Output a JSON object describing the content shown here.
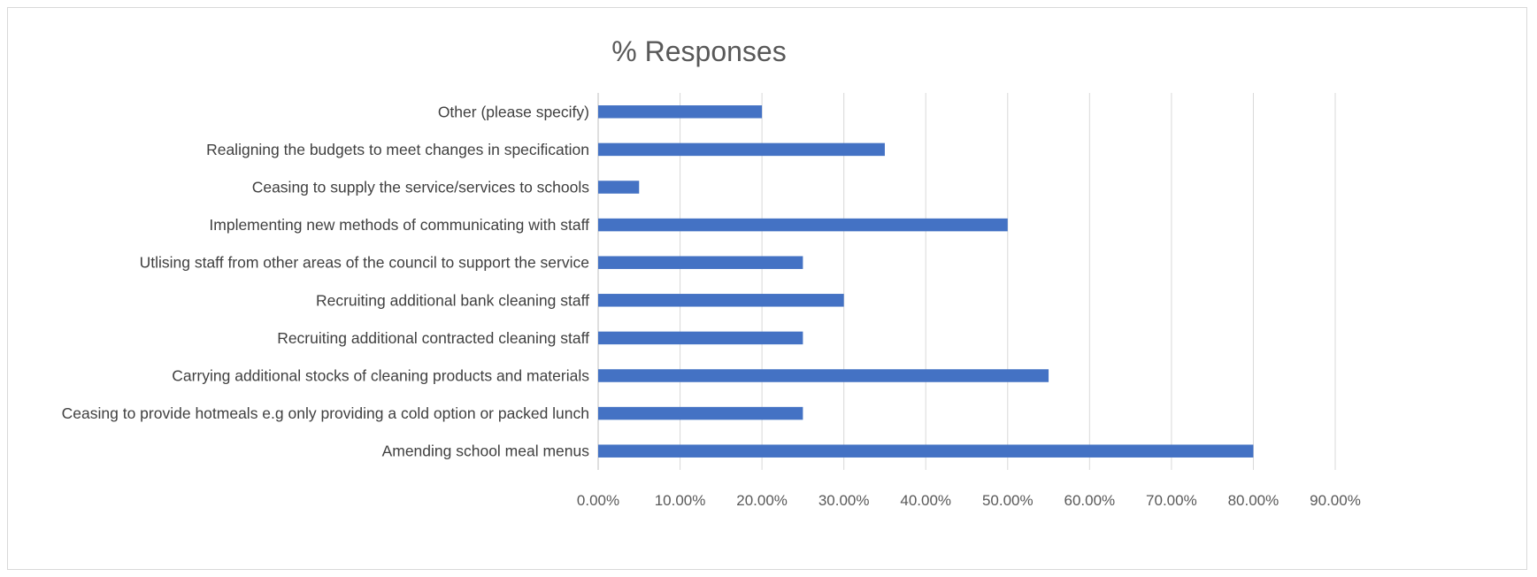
{
  "chart_data": {
    "type": "bar",
    "orientation": "horizontal",
    "title": "% Responses",
    "xlabel": "",
    "ylabel": "",
    "xlim": [
      0,
      90
    ],
    "x_ticks": [
      "0.00%",
      "10.00%",
      "20.00%",
      "30.00%",
      "40.00%",
      "50.00%",
      "60.00%",
      "70.00%",
      "80.00%",
      "90.00%"
    ],
    "grid": true,
    "legend": "none",
    "bar_color": "#4472c4",
    "categories": [
      "Other (please specify)",
      "Realigning the budgets to meet changes in specification",
      "Ceasing to supply the service/services to schools",
      "Implementing new methods of communicating with staff",
      "Utlising staff from other areas of the council to support the service",
      "Recruiting additional bank cleaning staff",
      "Recruiting additional contracted cleaning staff",
      "Carrying additional stocks of cleaning products and materials",
      "Ceasing to provide hotmeals e.g only providing a cold option or packed lunch",
      "Amending school meal menus"
    ],
    "values": [
      20,
      35,
      5,
      50,
      25,
      30,
      25,
      55,
      25,
      80
    ],
    "unit": "%"
  }
}
